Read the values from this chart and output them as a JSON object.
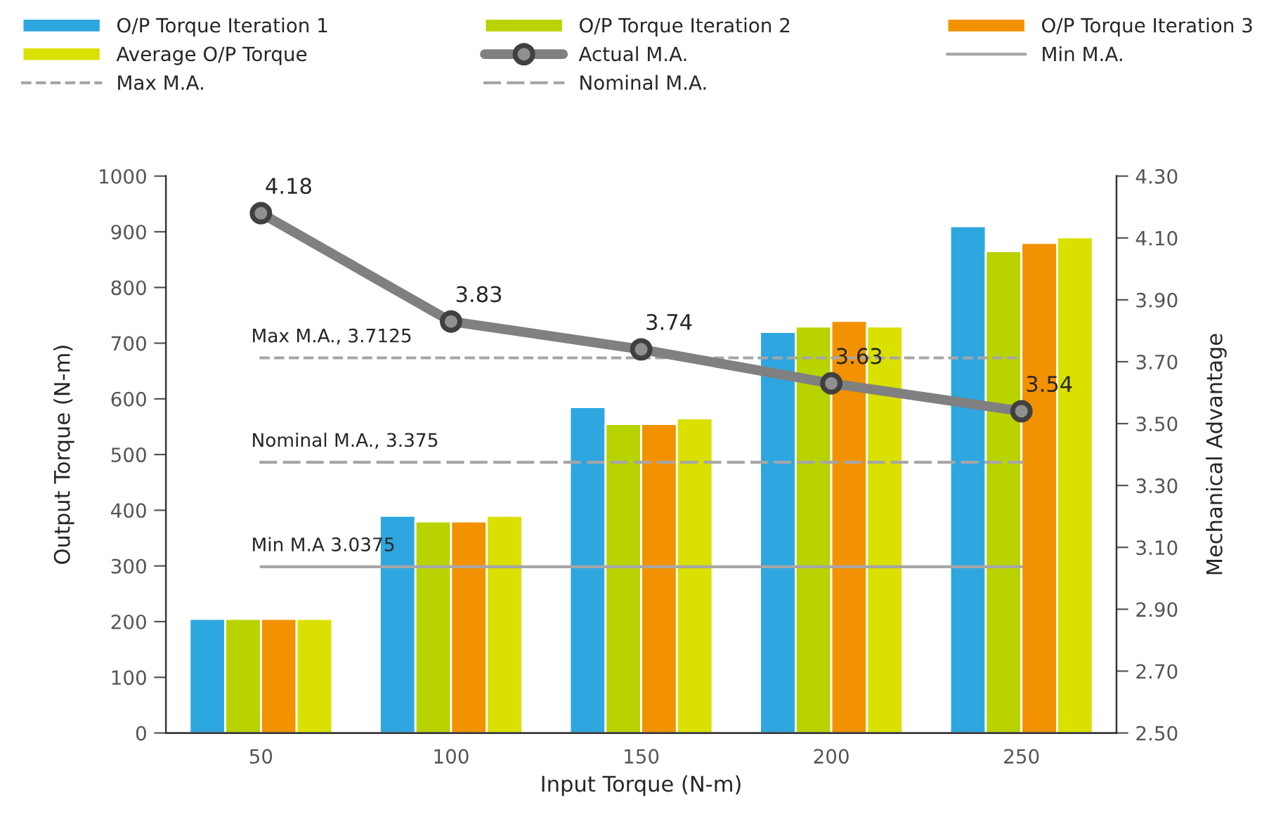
{
  "chart_data": {
    "type": "bar",
    "categories": [
      "50",
      "100",
      "150",
      "200",
      "250"
    ],
    "xlabel": "Input Torque (N-m)",
    "ylabel": "Output Torque (N-m)",
    "y2label": "Mechanical Advantage",
    "ylim": [
      0,
      1000
    ],
    "yticks": [
      0,
      100,
      200,
      300,
      400,
      500,
      600,
      700,
      800,
      900,
      1000
    ],
    "y2lim": [
      2.5,
      4.3
    ],
    "y2ticks": [
      {
        "value": 2.5,
        "label": "2.50"
      },
      {
        "value": 2.7,
        "label": "2.70"
      },
      {
        "value": 2.9,
        "label": "2.90"
      },
      {
        "value": 3.1,
        "label": "3.10"
      },
      {
        "value": 3.3,
        "label": "3.30"
      },
      {
        "value": 3.5,
        "label": "3.50"
      },
      {
        "value": 3.7,
        "label": "3.70"
      },
      {
        "value": 3.9,
        "label": "3.90"
      },
      {
        "value": 4.1,
        "label": "4.10"
      },
      {
        "value": 4.3,
        "label": "4.30"
      }
    ],
    "grid": false,
    "legend": "top",
    "series": [
      {
        "name": "O/P Torque Iteration 1",
        "color": "#2ea6df",
        "values": [
          205,
          390,
          585,
          720,
          910
        ]
      },
      {
        "name": "O/P Torque Iteration 2",
        "color": "#b9d300",
        "values": [
          205,
          380,
          555,
          730,
          865
        ]
      },
      {
        "name": "O/P Torque Iteration 3",
        "color": "#f39200",
        "values": [
          205,
          380,
          555,
          740,
          880
        ]
      },
      {
        "name": "Average O/P Torque",
        "color": "#dae000",
        "values": [
          205,
          390,
          565,
          730,
          890
        ]
      },
      {
        "name": "Actual M.A.",
        "type": "line",
        "axis": "y2",
        "color": "#808080",
        "marker": "circle",
        "line_style": "solid",
        "values": [
          4.18,
          3.83,
          3.74,
          3.63,
          3.54
        ],
        "value_labels": [
          "4.18",
          "3.83",
          "3.74",
          "3.63",
          "3.54"
        ]
      },
      {
        "name": "Min M.A.",
        "type": "line",
        "axis": "y2",
        "color": "#a6a6a6",
        "line_style": "solid",
        "values": [
          3.0375,
          3.0375,
          3.0375,
          3.0375,
          3.0375
        ]
      },
      {
        "name": "Max M.A.",
        "type": "line",
        "axis": "y2",
        "color": "#a6a6a6",
        "line_style": "dotted",
        "values": [
          3.7125,
          3.7125,
          3.7125,
          3.7125,
          3.7125
        ]
      },
      {
        "name": "Nominal M.A.",
        "type": "line",
        "axis": "y2",
        "color": "#a6a6a6",
        "line_style": "dashed",
        "values": [
          3.375,
          3.375,
          3.375,
          3.375,
          3.375
        ]
      }
    ],
    "annotations": [
      "Max M.A., 3.7125",
      "Nominal M.A., 3.375",
      "Min M.A 3.0375"
    ]
  }
}
